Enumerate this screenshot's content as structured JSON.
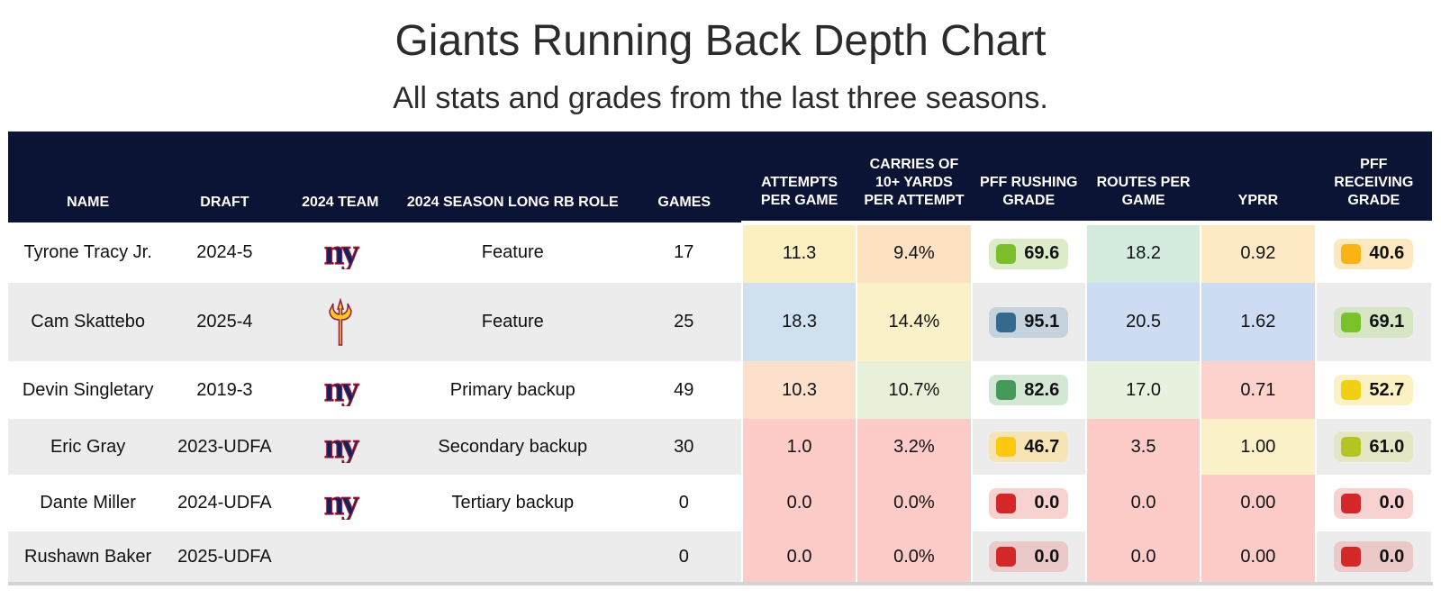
{
  "title": "Giants Running Back Depth Chart",
  "subtitle": "All stats and grades from the last three seasons.",
  "columns": [
    "NAME",
    "DRAFT",
    "2024 TEAM",
    "2024 SEASON LONG RB ROLE",
    "GAMES",
    "ATTEMPTS PER GAME",
    "CARRIES OF 10+ YARDS PER ATTEMPT",
    "PFF RUSHING GRADE",
    "ROUTES PER GAME",
    "YPRR",
    "PFF RECEIVING GRADE"
  ],
  "chart_data": {
    "type": "table",
    "rows": [
      {
        "name": "Tyrone Tracy Jr.",
        "draft": "2024-5",
        "team_icon": "ny-giants-logo-icon",
        "role": "Feature",
        "games": "17",
        "attempts": {
          "value": "11.3",
          "bg": "#fdf0c0"
        },
        "carries10": {
          "value": "9.4%",
          "bg": "#fde1c3"
        },
        "rush_grade": {
          "value": "69.6",
          "pill": "#dcecc8",
          "square": "#7cbf2c"
        },
        "routes": {
          "value": "18.2",
          "bg": "#d3ebdc"
        },
        "yprr": {
          "value": "0.92",
          "bg": "#fde9c4"
        },
        "recv_grade": {
          "value": "40.6",
          "pill": "#fde8c0",
          "square": "#fbb314"
        }
      },
      {
        "name": "Cam Skattebo",
        "draft": "2025-4",
        "team_icon": "asu-pitchfork-logo-icon",
        "role": "Feature",
        "games": "25",
        "attempts": {
          "value": "18.3",
          "bg": "#cfe0ef"
        },
        "carries10": {
          "value": "14.4%",
          "bg": "#faf1c9"
        },
        "rush_grade": {
          "value": "95.1",
          "pill": "#c6d3de",
          "square": "#336a8e"
        },
        "routes": {
          "value": "20.5",
          "bg": "#cddcf2"
        },
        "yprr": {
          "value": "1.62",
          "bg": "#cddcf2"
        },
        "recv_grade": {
          "value": "69.1",
          "pill": "#d6e6c4",
          "square": "#79c22b"
        }
      },
      {
        "name": "Devin Singletary",
        "draft": "2019-3",
        "team_icon": "ny-giants-logo-icon",
        "role": "Primary backup",
        "games": "49",
        "attempts": {
          "value": "10.3",
          "bg": "#fde0cc"
        },
        "carries10": {
          "value": "10.7%",
          "bg": "#e9f0d9"
        },
        "rush_grade": {
          "value": "82.6",
          "pill": "#d3e7d4",
          "square": "#469a57"
        },
        "routes": {
          "value": "17.0",
          "bg": "#e7f1dd"
        },
        "yprr": {
          "value": "0.71",
          "bg": "#fdd1cc"
        },
        "recv_grade": {
          "value": "52.7",
          "pill": "#fbf1c2",
          "square": "#f1cf12"
        }
      },
      {
        "name": "Eric Gray",
        "draft": "2023-UDFA",
        "team_icon": "ny-giants-logo-icon",
        "role": "Secondary backup",
        "games": "30",
        "attempts": {
          "value": "1.0",
          "bg": "#fdccc8"
        },
        "carries10": {
          "value": "3.2%",
          "bg": "#fdccc8"
        },
        "rush_grade": {
          "value": "46.7",
          "pill": "#f6e4b4",
          "square": "#fcc810"
        },
        "routes": {
          "value": "3.5",
          "bg": "#fdccc8"
        },
        "yprr": {
          "value": "1.00",
          "bg": "#faf1c9"
        },
        "recv_grade": {
          "value": "61.0",
          "pill": "#e3e7c4",
          "square": "#b5c524"
        }
      },
      {
        "name": "Dante Miller",
        "draft": "2024-UDFA",
        "team_icon": "ny-giants-logo-icon",
        "role": "Tertiary backup",
        "games": "0",
        "attempts": {
          "value": "0.0",
          "bg": "#fdccc8"
        },
        "carries10": {
          "value": "0.0%",
          "bg": "#fdccc8"
        },
        "rush_grade": {
          "value": "0.0",
          "pill": "#f8d2d0",
          "square": "#d42727"
        },
        "routes": {
          "value": "0.0",
          "bg": "#fdccc8"
        },
        "yprr": {
          "value": "0.00",
          "bg": "#fdccc8"
        },
        "recv_grade": {
          "value": "0.0",
          "pill": "#f8d2d0",
          "square": "#d42727"
        }
      },
      {
        "name": "Rushawn Baker",
        "draft": "2025-UDFA",
        "team_icon": "",
        "role": "",
        "games": "0",
        "attempts": {
          "value": "0.0",
          "bg": "#fdccc8"
        },
        "carries10": {
          "value": "0.0%",
          "bg": "#fdccc8"
        },
        "rush_grade": {
          "value": "0.0",
          "pill": "#ecc9c9",
          "square": "#d42727"
        },
        "routes": {
          "value": "0.0",
          "bg": "#fdccc8"
        },
        "yprr": {
          "value": "0.00",
          "bg": "#fdccc8"
        },
        "recv_grade": {
          "value": "0.0",
          "pill": "#ecc9c9",
          "square": "#d42727"
        }
      }
    ]
  }
}
